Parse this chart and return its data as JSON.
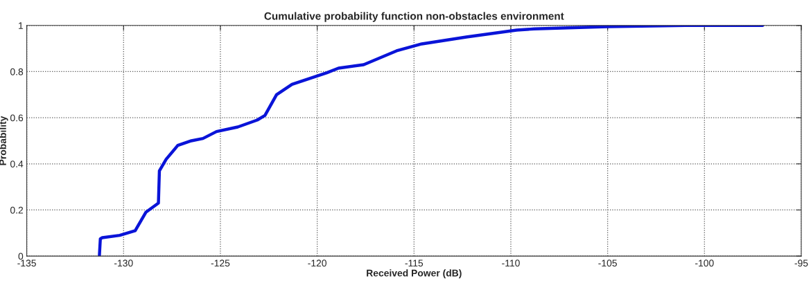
{
  "chart_data": {
    "type": "line",
    "title": "Cumulative probability function non-obstacles environment",
    "xlabel": "Received Power (dB)",
    "ylabel": "Probability",
    "series": [
      {
        "color": "#0a14d8",
        "x": [
          -131.25,
          -131.2,
          -131.1,
          -130.2,
          -129.4,
          -128.85,
          -128.2,
          -128.15,
          -127.8,
          -127.2,
          -126.5,
          -125.9,
          -125.2,
          -124.1,
          -123.1,
          -122.7,
          -122.1,
          -121.3,
          -119.5,
          -118.9,
          -117.6,
          -115.9,
          -114.6,
          -112.3,
          -109.7,
          -108.8,
          -105,
          -101,
          -97.0
        ],
        "values": [
          0,
          0.075,
          0.08,
          0.09,
          0.11,
          0.19,
          0.23,
          0.37,
          0.42,
          0.48,
          0.5,
          0.51,
          0.54,
          0.56,
          0.59,
          0.61,
          0.7,
          0.745,
          0.795,
          0.815,
          0.83,
          0.89,
          0.92,
          0.95,
          0.98,
          0.985,
          0.995,
          1.0,
          1.0
        ]
      }
    ],
    "xlim": [
      -135,
      -95
    ],
    "ylim": [
      0,
      1
    ],
    "xticks": [
      -135,
      -130,
      -125,
      -120,
      -115,
      -110,
      -105,
      -100,
      -95
    ],
    "yticks": [
      0,
      0.2,
      0.4,
      0.6,
      0.8,
      1
    ],
    "grid": true,
    "line_style": "solid"
  }
}
